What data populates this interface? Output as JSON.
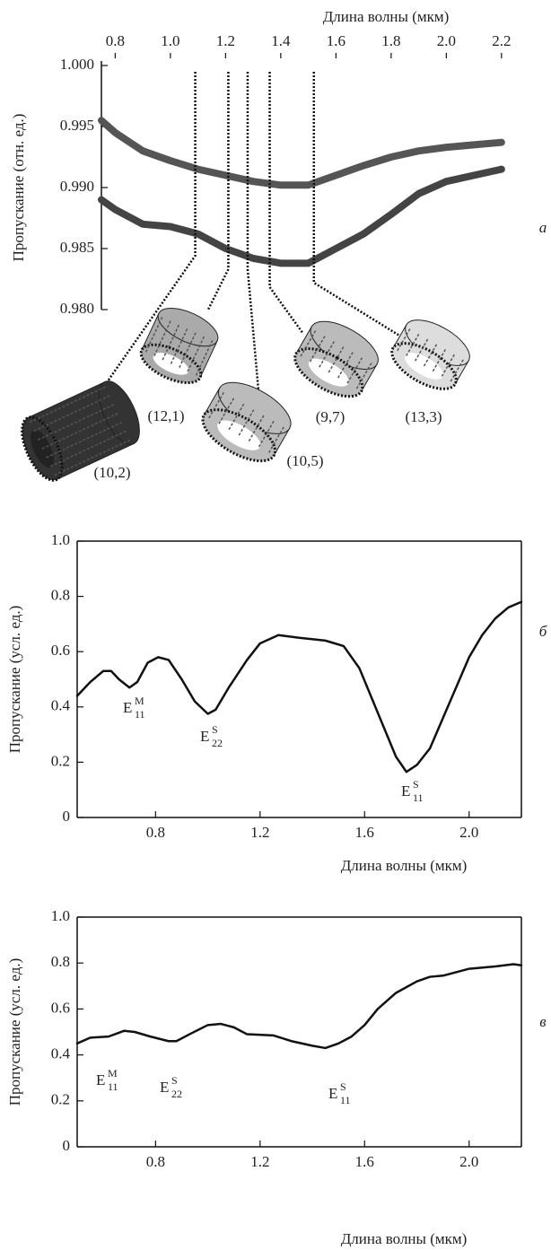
{
  "chart_data": [
    {
      "type": "line",
      "panel_label": "а",
      "x_label": "Длина волны (мкм)",
      "y_label": "Пропускание (отн. ед.)",
      "x_axis": "top",
      "frame": false,
      "x": [
        0.75,
        0.8,
        0.9,
        1.0,
        1.1,
        1.2,
        1.3,
        1.4,
        1.5,
        1.6,
        1.7,
        1.8,
        1.9,
        2.0,
        2.1,
        2.2
      ],
      "series": [
        {
          "color": "#555555",
          "values": [
            0.9955,
            0.9945,
            0.993,
            0.9922,
            0.9915,
            0.991,
            0.9905,
            0.9902,
            0.9902,
            0.991,
            0.9918,
            0.9925,
            0.993,
            0.9933,
            0.9935,
            0.9937
          ]
        },
        {
          "color": "#444444",
          "values": [
            0.989,
            0.9882,
            0.987,
            0.9868,
            0.9862,
            0.985,
            0.9842,
            0.9838,
            0.9838,
            0.985,
            0.9862,
            0.9878,
            0.9895,
            0.9905,
            0.991,
            0.9915
          ]
        }
      ],
      "xlim": [
        0.75,
        2.22
      ],
      "ylim": [
        0.98,
        1.0
      ],
      "xticks": [
        0.8,
        {
          "value": 1.0,
          "label": "1.0"
        },
        1.2,
        1.4,
        1.6,
        1.8,
        {
          "value": 2.0,
          "label": "2.0"
        },
        2.2
      ],
      "yticks": [
        {
          "value": 1.0,
          "label": "1.000"
        },
        0.995,
        {
          "value": 0.99,
          "label": "0.990"
        },
        0.985,
        {
          "value": 0.98,
          "label": "0.980"
        }
      ],
      "annotations": [
        {
          "text": "(10,2)",
          "x": 1.09
        },
        {
          "text": "(12,1)",
          "x": 1.21
        },
        {
          "text": "(10,5)",
          "x": 1.28
        },
        {
          "text": "(9,7)",
          "x": 1.36
        },
        {
          "text": "(13,3)",
          "x": 1.52
        }
      ]
    },
    {
      "type": "line",
      "panel_label": "б",
      "x_label": "Длина волны (мкм)",
      "y_label": "Пропускание (усл. ед.)",
      "x_axis": "bottom",
      "frame": true,
      "x": [
        0.5,
        0.55,
        0.6,
        0.63,
        0.66,
        0.7,
        0.73,
        0.77,
        0.81,
        0.85,
        0.9,
        0.95,
        1.0,
        1.03,
        1.08,
        1.15,
        1.2,
        1.27,
        1.35,
        1.45,
        1.52,
        1.58,
        1.65,
        1.72,
        1.76,
        1.8,
        1.85,
        1.9,
        1.95,
        2.0,
        2.05,
        2.1,
        2.15,
        2.2
      ],
      "series": [
        {
          "color": "#111111",
          "values": [
            0.44,
            0.49,
            0.53,
            0.53,
            0.5,
            0.47,
            0.49,
            0.56,
            0.58,
            0.57,
            0.5,
            0.42,
            0.375,
            0.39,
            0.47,
            0.57,
            0.63,
            0.66,
            0.65,
            0.64,
            0.62,
            0.54,
            0.38,
            0.22,
            0.165,
            0.19,
            0.25,
            0.36,
            0.47,
            0.58,
            0.66,
            0.72,
            0.76,
            0.78
          ]
        }
      ],
      "xlim": [
        0.5,
        2.2
      ],
      "ylim": [
        0,
        1
      ],
      "xticks": [
        0.8,
        1.2,
        1.6,
        {
          "value": 2.0,
          "label": "2.0"
        }
      ],
      "yticks": [
        0,
        0.2,
        0.4,
        0.6,
        0.8,
        {
          "value": 1.0,
          "label": "1.0"
        }
      ],
      "annotations": [
        {
          "text": "E",
          "sup": "M",
          "sub": "11"
        },
        {
          "text": "E",
          "sup": "S",
          "sub": "22"
        },
        {
          "text": "E",
          "sup": "S",
          "sub": "11"
        }
      ]
    },
    {
      "type": "line",
      "panel_label": "в",
      "x_label": "Длина волны (мкм)",
      "y_label": "Пропускание (усл. ед.)",
      "x_axis": "bottom",
      "frame": true,
      "x": [
        0.5,
        0.55,
        0.62,
        0.68,
        0.72,
        0.78,
        0.85,
        0.88,
        0.93,
        1.0,
        1.05,
        1.1,
        1.15,
        1.25,
        1.32,
        1.4,
        1.45,
        1.5,
        1.55,
        1.6,
        1.65,
        1.72,
        1.8,
        1.85,
        1.9,
        1.95,
        2.0,
        2.1,
        2.17,
        2.2
      ],
      "series": [
        {
          "color": "#111111",
          "values": [
            0.45,
            0.475,
            0.48,
            0.505,
            0.5,
            0.48,
            0.46,
            0.46,
            0.49,
            0.53,
            0.535,
            0.52,
            0.49,
            0.485,
            0.46,
            0.44,
            0.43,
            0.45,
            0.48,
            0.53,
            0.6,
            0.67,
            0.72,
            0.74,
            0.745,
            0.76,
            0.775,
            0.785,
            0.795,
            0.79
          ]
        }
      ],
      "xlim": [
        0.5,
        2.2
      ],
      "ylim": [
        0,
        1
      ],
      "xticks": [
        0.8,
        1.2,
        1.6,
        {
          "value": 2.0,
          "label": "2.0"
        }
      ],
      "yticks": [
        0,
        0.2,
        0.4,
        0.6,
        0.8,
        {
          "value": 1.0,
          "label": "1.0"
        }
      ],
      "annotations": [
        {
          "text": "E",
          "sup": "M",
          "sub": "11"
        },
        {
          "text": "E",
          "sup": "S",
          "sub": "22"
        },
        {
          "text": "E",
          "sup": "S",
          "sub": "11"
        }
      ]
    }
  ]
}
